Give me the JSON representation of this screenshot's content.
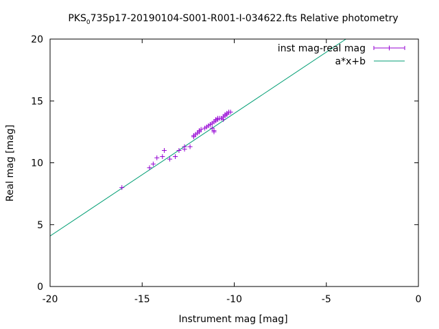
{
  "chart_data": {
    "type": "scatter",
    "title": {
      "prefix": "PKS",
      "sub": "0",
      "rest": "735p17-20190104-S001-R001-I-034622.fts Relative photometry"
    },
    "xlabel": "Instrument mag [mag]",
    "ylabel": "Real mag [mag]",
    "xlim": [
      -20,
      0
    ],
    "ylim": [
      0,
      20
    ],
    "xticks": [
      -20,
      -15,
      -10,
      -5,
      0
    ],
    "yticks": [
      0,
      5,
      10,
      15,
      20
    ],
    "xtick_labels": [
      "-20",
      "-15",
      "-10",
      "-5",
      "0"
    ],
    "ytick_labels": [
      "0",
      "5",
      "10",
      "15",
      "20"
    ],
    "grid": false,
    "legend_position": "top-right",
    "series": [
      {
        "name": "inst mag-real mag",
        "kind": "points",
        "marker": "plus",
        "color": "#9400d3",
        "x": [
          -16.1,
          -14.6,
          -14.4,
          -14.2,
          -13.9,
          -13.8,
          -13.5,
          -13.2,
          -13.0,
          -12.7,
          -12.7,
          -12.4,
          -12.2,
          -12.2,
          -12.1,
          -12.0,
          -11.9,
          -11.9,
          -11.8,
          -11.6,
          -11.5,
          -11.4,
          -11.3,
          -11.2,
          -11.1,
          -11.1,
          -11.0,
          -11.0,
          -10.9,
          -10.8,
          -10.7,
          -10.6,
          -10.6,
          -10.5,
          -10.5,
          -10.4,
          -10.4,
          -10.3,
          -10.2,
          -11.2,
          -11.1,
          -10.9
        ],
        "y": [
          8.0,
          9.6,
          9.9,
          10.4,
          10.5,
          11.0,
          10.3,
          10.5,
          11.0,
          11.1,
          11.3,
          11.3,
          12.1,
          12.2,
          12.3,
          12.4,
          12.5,
          12.6,
          12.7,
          12.8,
          12.9,
          13.0,
          13.1,
          13.2,
          13.3,
          12.6,
          13.4,
          13.5,
          13.5,
          13.6,
          13.6,
          13.5,
          13.7,
          13.8,
          13.9,
          13.9,
          14.0,
          14.1,
          14.1,
          12.8,
          12.5,
          13.6
        ]
      },
      {
        "name": "a*x+b",
        "kind": "line",
        "color": "#009e73",
        "a": 0.991,
        "b": 23.9
      }
    ]
  }
}
